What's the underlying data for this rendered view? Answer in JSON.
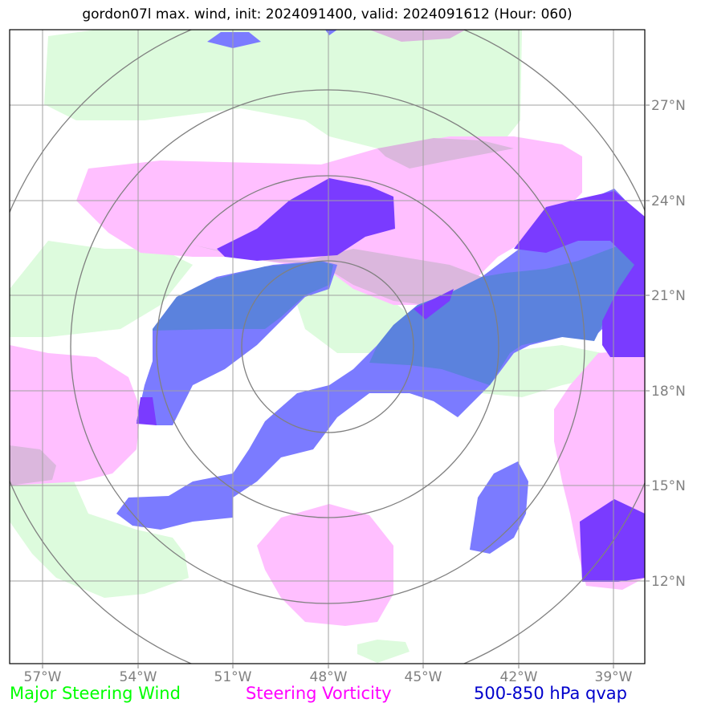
{
  "title": "gordon07l max. wind, init: 2024091400, valid: 2024091612 (Hour: 060)",
  "lon_labels": [
    "57°W",
    "54°W",
    "51°W",
    "48°W",
    "45°W",
    "42°W",
    "39°W"
  ],
  "lat_labels": [
    "27°N",
    "24°N",
    "21°N",
    "18°N",
    "15°N",
    "12°N"
  ],
  "legend": {
    "wind": "Major Steering Wind",
    "vorticity": "Steering Vorticity",
    "qvap": "500-850 hPa qvap"
  },
  "colors": {
    "wind": "#00ff00",
    "vorticity": "#ff00ff",
    "qvap": "#0000cc",
    "wind_fill": "#ddfbdd",
    "vorticity_fill": "#ffbfff",
    "qvap_fill": "#7b7bff",
    "qvap_strong_fill": "#7a3bff",
    "gridline": "#808080"
  }
}
